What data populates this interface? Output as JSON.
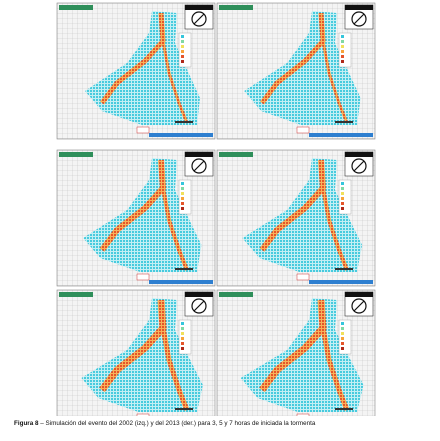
{
  "caption": {
    "label": "Figura 8",
    "text": "– Simulación del evento del 2002 (izq.) y del 2013 (der.) para 3, 5 y 7 horas de iniciada la tormenta"
  }
}
